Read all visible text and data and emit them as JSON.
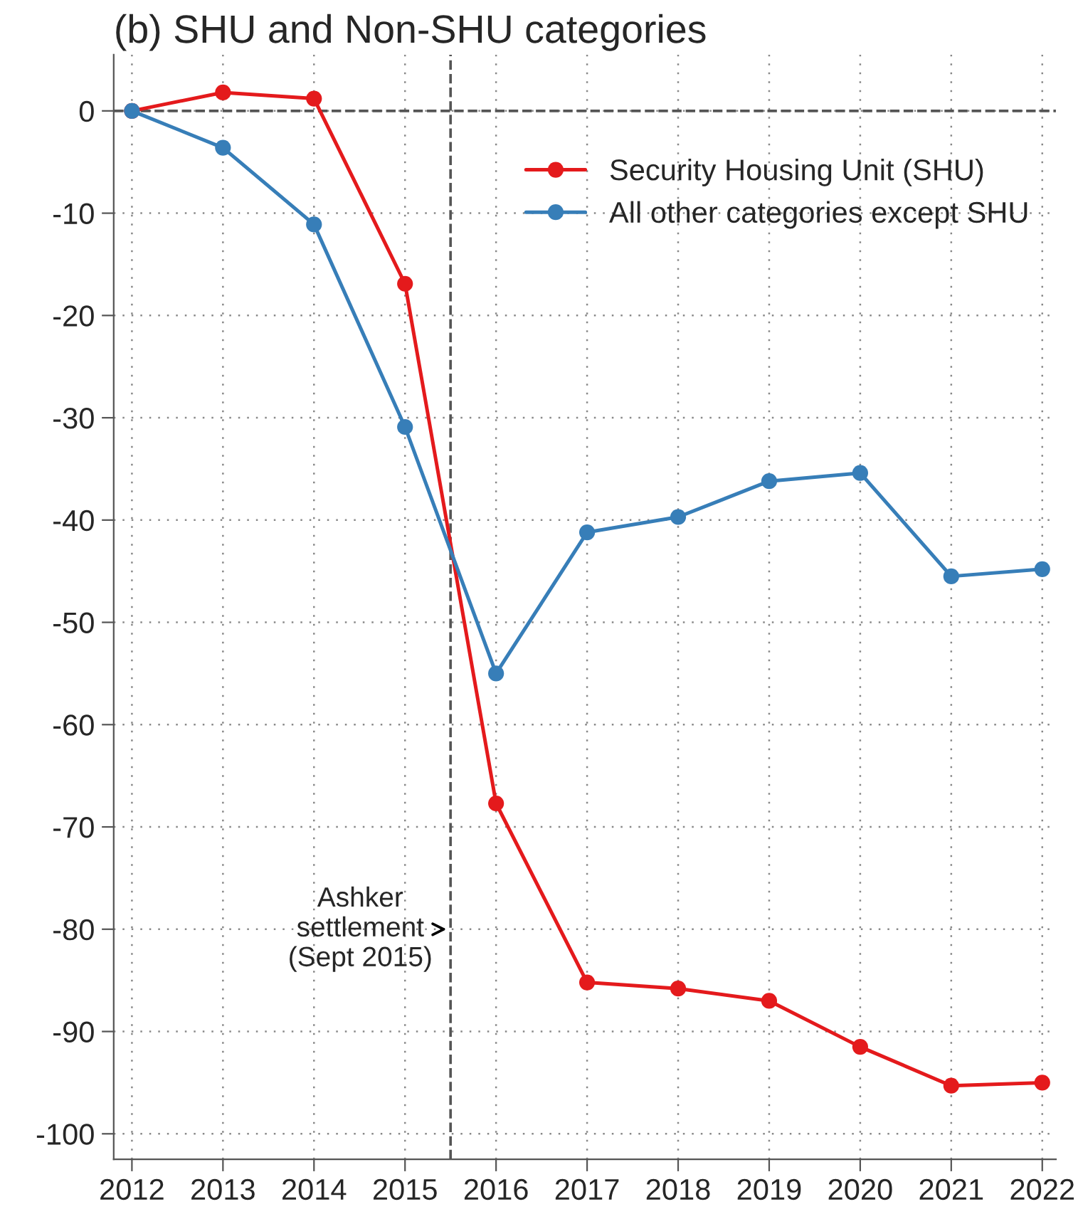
{
  "chart_data": {
    "type": "line",
    "title": "(b) SHU and Non-SHU categories",
    "x": [
      2012,
      2013,
      2014,
      2015,
      2016,
      2017,
      2018,
      2019,
      2020,
      2021,
      2022
    ],
    "series": [
      {
        "name": "Security Housing Unit (SHU)",
        "color": "#e41a1c",
        "values": [
          0,
          1.8,
          1.2,
          -16.9,
          -67.7,
          -85.2,
          -85.8,
          -87.0,
          -91.5,
          -95.3,
          -95.0
        ]
      },
      {
        "name": "All other categories except SHU",
        "color": "#377eb8",
        "values": [
          0,
          -3.6,
          -11.1,
          -30.9,
          -55.0,
          -41.2,
          -39.7,
          -36.2,
          -35.4,
          -45.5,
          -44.8
        ]
      }
    ],
    "xlim": [
      2011.8,
      2022.15
    ],
    "ylim": [
      -102.5,
      5.5
    ],
    "xticks": [
      2012,
      2013,
      2014,
      2015,
      2016,
      2017,
      2018,
      2019,
      2020,
      2021,
      2022
    ],
    "yticks": [
      0,
      -10,
      -20,
      -30,
      -40,
      -50,
      -60,
      -70,
      -80,
      -90,
      -100
    ],
    "ref_lines": [
      {
        "axis": "y",
        "value": 0,
        "color": "#555555",
        "line_style": "dashed"
      },
      {
        "axis": "x",
        "value": 2015.5,
        "color": "#555555",
        "line_style": "dashed"
      }
    ],
    "annotations": [
      {
        "text": "Ashker\nsettlement\n(Sept 2015)",
        "x": 2015.5,
        "y": -80
      }
    ],
    "grid": true,
    "legend": "top right",
    "marker": "circle",
    "line_style": "solid"
  }
}
